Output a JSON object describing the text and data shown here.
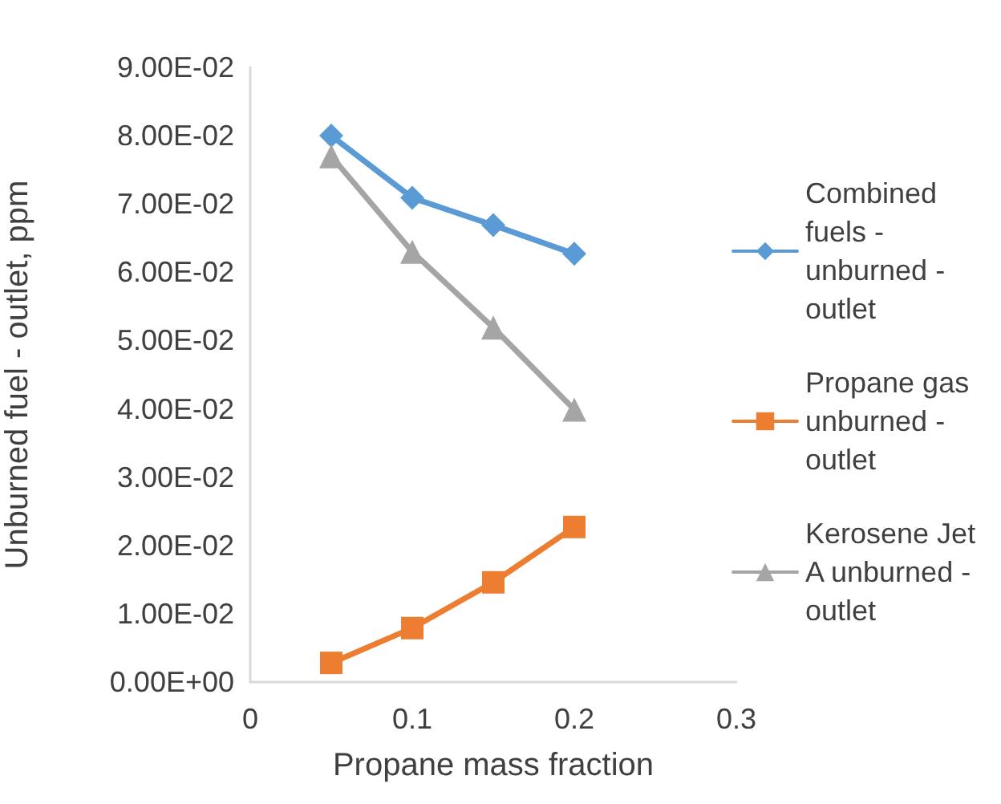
{
  "chart_data": {
    "type": "line",
    "xlabel": "Propane mass fraction",
    "ylabel": "Unburned fuel - outlet, ppm",
    "x": [
      0.05,
      0.1,
      0.15,
      0.2
    ],
    "series": [
      {
        "name": "Combined fuels - unburned - outlet",
        "color": "#5b9bd5",
        "marker": "diamond",
        "values": [
          0.08,
          0.0709,
          0.0669,
          0.0627
        ]
      },
      {
        "name": "Propane gas unburned - outlet",
        "color": "#ed7d31",
        "marker": "square",
        "values": [
          0.0028,
          0.0079,
          0.0146,
          0.0227
        ]
      },
      {
        "name": "Kerosene Jet A unburned - outlet",
        "color": "#a5a5a5",
        "marker": "triangle",
        "values": [
          0.077,
          0.063,
          0.0519,
          0.0399
        ]
      }
    ],
    "xlim": [
      0,
      0.3
    ],
    "xticks": [
      0,
      0.1,
      0.2,
      0.3
    ],
    "ylim": [
      0,
      0.09
    ],
    "yticks": [
      {
        "value": 0,
        "label": "0.00E+00"
      },
      {
        "value": 0.01,
        "label": "1.00E-02"
      },
      {
        "value": 0.02,
        "label": "2.00E-02"
      },
      {
        "value": 0.03,
        "label": "3.00E-02"
      },
      {
        "value": 0.04,
        "label": "4.00E-02"
      },
      {
        "value": 0.05,
        "label": "5.00E-02"
      },
      {
        "value": 0.06,
        "label": "6.00E-02"
      },
      {
        "value": 0.07,
        "label": "7.00E-02"
      },
      {
        "value": 0.08,
        "label": "8.00E-02"
      },
      {
        "value": 0.09,
        "label": "9.00E-02"
      }
    ],
    "grid": false,
    "legend": "right",
    "line_style": "solid"
  }
}
